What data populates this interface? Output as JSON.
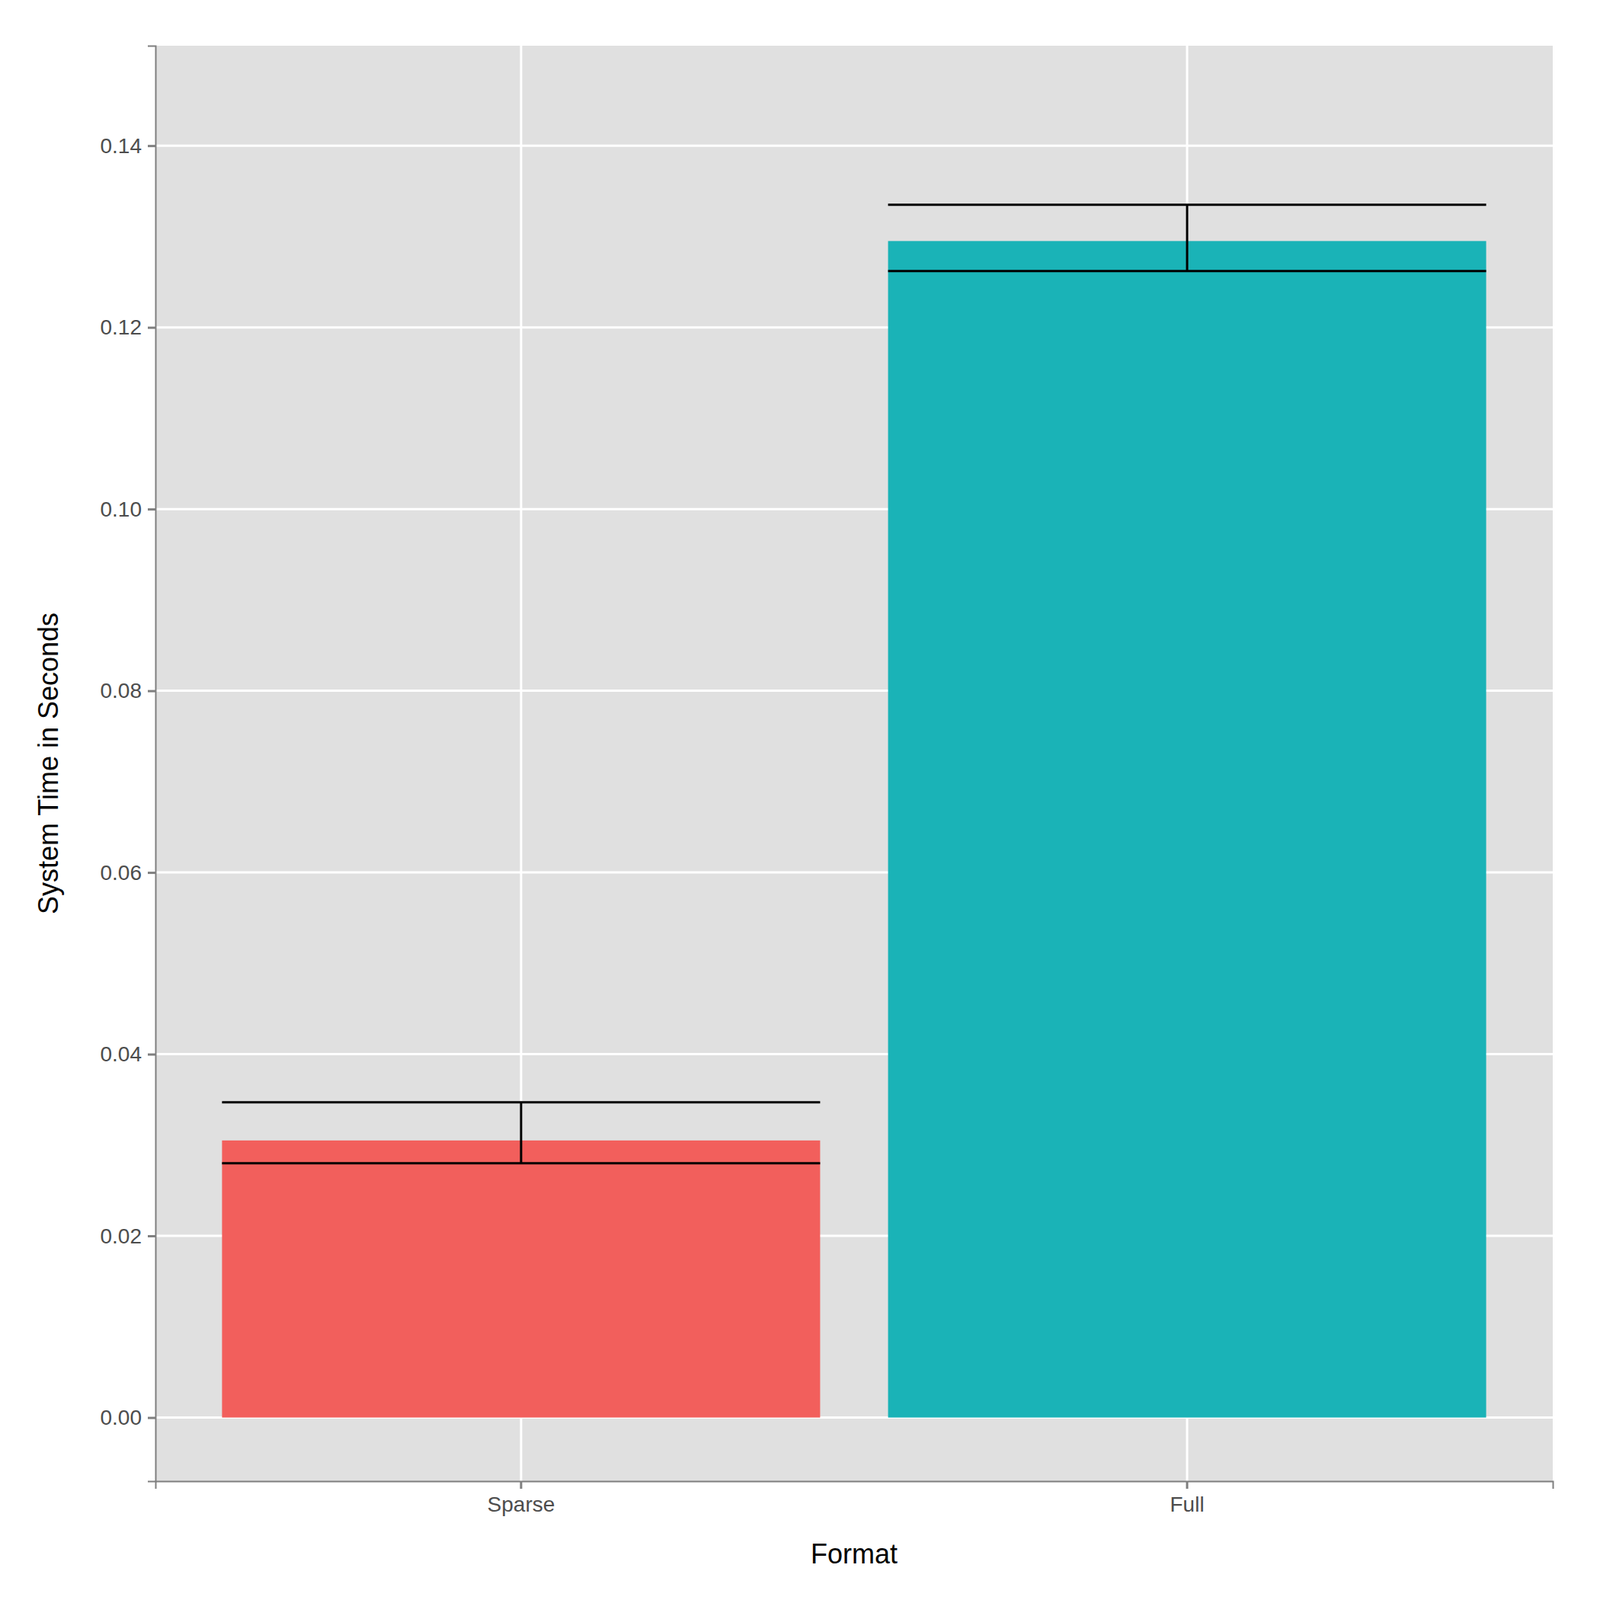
{
  "chart_data": {
    "type": "bar",
    "x_label": "Format",
    "y_label": "System Time in Seconds",
    "categories": [
      "Sparse",
      "Full"
    ],
    "values": [
      0.0305,
      0.1295
    ],
    "error_lower": [
      0.028,
      0.1262
    ],
    "error_upper": [
      0.0347,
      0.1335
    ],
    "colors": [
      "#f25f5c",
      "#1ab3b7"
    ],
    "ylim": [
      -0.007,
      0.151
    ],
    "yticks": [
      {
        "value": 0,
        "label": "0.00"
      },
      0.02,
      0.04,
      0.06,
      0.08,
      {
        "value": 0.1,
        "label": "0.10"
      },
      0.12,
      0.14
    ],
    "grid": true
  }
}
